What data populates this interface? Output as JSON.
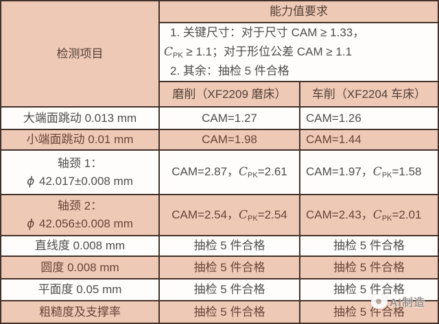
{
  "colors": {
    "pink_cell": "#eecab6",
    "white_cell": "#fefdfb",
    "grid_line": "#42302a",
    "text_on_white": "#4d4d4d",
    "text_on_pink": "#6a4238"
  },
  "header": {
    "left_label": "检测项目",
    "capability_label": "能力值要求",
    "req_line1": "1. 关键尺寸：对于尺寸 CAM ≥ 1.33，",
    "req_line2_c": "C",
    "req_line2_sub": "PK",
    "req_line2_rest": " ≥ 1.1；对于形位公差 CAM ≥ 1.1",
    "req_line3": "2. 其余：抽检 5 件合格",
    "grind_label": "磨削（XF2209 磨床）",
    "turn_label": "车削（XF2204 车床）"
  },
  "rows": [
    {
      "label": "大端面跳动 0.013 mm",
      "grind": "CAM=1.27",
      "turn": "CAM=1.26"
    },
    {
      "label": "小端面跳动 0.01 mm",
      "grind": "CAM=1.98",
      "turn": "CAM=1.44"
    },
    {
      "label_line1": "轴颈 1：",
      "label_phi": "ϕ",
      "label_line2": " 42.017±0.008 mm",
      "grind_pre": "CAM=2.87，",
      "grind_c": "C",
      "grind_sub": "PK",
      "grind_post": "=2.61",
      "turn_pre": "CAM=1.97，",
      "turn_c": "C",
      "turn_sub": "PK",
      "turn_post": "=1.58"
    },
    {
      "label_line1": "轴颈 2：",
      "label_phi": "ϕ",
      "label_line2": " 42.056±0.008 mm",
      "grind_pre": "CAM=2.54，",
      "grind_c": "C",
      "grind_sub": "PK",
      "grind_post": "=2.54",
      "turn_pre": "CAM=2.43，",
      "turn_c": "C",
      "turn_sub": "PK",
      "turn_post": "=2.01"
    },
    {
      "label": "直线度 0.008 mm",
      "grind": "抽检 5 件合格",
      "turn": "抽检 5 件合格"
    },
    {
      "label": "圆度 0.008 mm",
      "grind": "抽检 5 件合格",
      "turn": "抽检 5 件合格"
    },
    {
      "label": "平面度 0.05 mm",
      "grind": "抽检 5 件合格",
      "turn": "抽检 5 件合格"
    },
    {
      "label": "粗糙度及支撑率",
      "grind": "抽检 5 件合格",
      "turn": "抽检 5 件合格"
    }
  ],
  "watermark": {
    "text": "AI制造",
    "icon": "publisher-logo-icon"
  }
}
